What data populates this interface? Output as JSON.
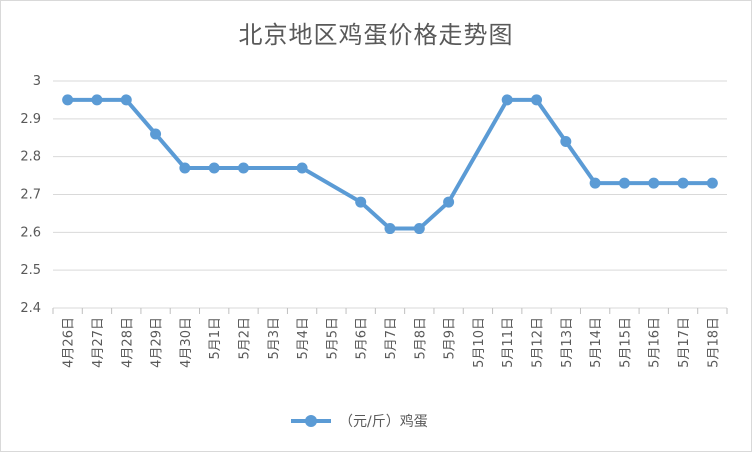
{
  "chart_data": {
    "type": "line",
    "title": "北京地区鸡蛋价格走势图",
    "categories": [
      "4月26日",
      "4月27日",
      "4月28日",
      "4月29日",
      "4月30日",
      "5月1日",
      "5月2日",
      "5月3日",
      "5月4日",
      "5月5日",
      "5月6日",
      "5月7日",
      "5月8日",
      "5月9日",
      "5月10日",
      "5月11日",
      "5月12日",
      "5月13日",
      "5月14日",
      "5月15日",
      "5月16日",
      "5月17日",
      "5月18日"
    ],
    "series": [
      {
        "name": "（元/斤）鸡蛋",
        "color": "#5b9bd5",
        "values": [
          2.95,
          2.95,
          2.95,
          2.86,
          2.77,
          2.77,
          2.77,
          null,
          2.77,
          null,
          2.68,
          2.61,
          2.61,
          2.68,
          null,
          2.95,
          2.95,
          2.84,
          2.73,
          2.73,
          2.73,
          2.73,
          2.73
        ]
      }
    ],
    "ylim": [
      2.4,
      3
    ],
    "yticks": [
      "2.4",
      "2.5",
      "2.6",
      "2.7",
      "2.8",
      "2.9",
      "3"
    ],
    "grid": true,
    "legend": "bottom"
  }
}
